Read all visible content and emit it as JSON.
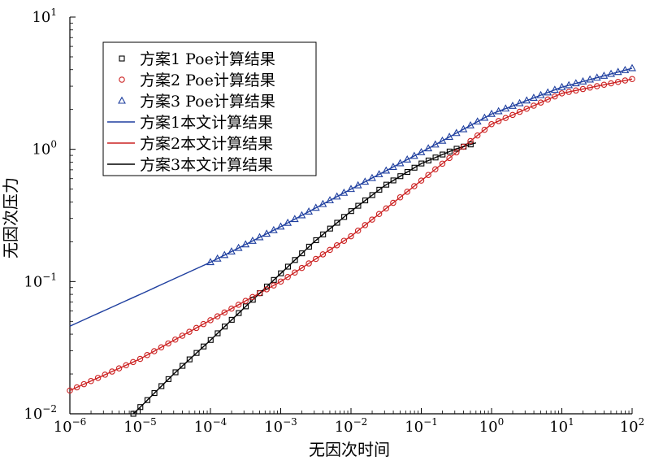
{
  "chart_data": {
    "type": "line",
    "xlabel": "无因次时间",
    "ylabel": "无因次压力",
    "xscale": "log",
    "yscale": "log",
    "xlim": [
      1e-06,
      100
    ],
    "ylim": [
      0.01,
      10
    ],
    "x_ticks": [
      {
        "value": 1e-06,
        "base": "10",
        "exp": "−6"
      },
      {
        "value": 1e-05,
        "base": "10",
        "exp": "−5"
      },
      {
        "value": 0.0001,
        "base": "10",
        "exp": "−4"
      },
      {
        "value": 0.001,
        "base": "10",
        "exp": "−3"
      },
      {
        "value": 0.01,
        "base": "10",
        "exp": "−2"
      },
      {
        "value": 0.1,
        "base": "10",
        "exp": "−1"
      },
      {
        "value": 1,
        "base": "10",
        "exp": "0"
      },
      {
        "value": 10,
        "base": "10",
        "exp": "1"
      },
      {
        "value": 100,
        "base": "10",
        "exp": "2"
      }
    ],
    "y_ticks": [
      {
        "value": 0.01,
        "base": "10",
        "exp": "−2"
      },
      {
        "value": 0.1,
        "base": "10",
        "exp": "−1"
      },
      {
        "value": 1,
        "base": "10",
        "exp": "0"
      },
      {
        "value": 10,
        "base": "10",
        "exp": "1"
      }
    ],
    "grid": false,
    "legend_position": "top-left",
    "series": [
      {
        "name": "方案1 Poe计算结果",
        "kind": "marker",
        "marker": "square",
        "color": "#000000",
        "x": [
          8e-06,
          1e-05,
          3e-05,
          0.0001,
          0.0003,
          0.001,
          0.003,
          0.01,
          0.03,
          0.1,
          0.3,
          0.6
        ],
        "y": [
          0.01,
          0.0112,
          0.02,
          0.036,
          0.063,
          0.115,
          0.2,
          0.34,
          0.53,
          0.78,
          1.0,
          1.12
        ]
      },
      {
        "name": "方案2 Poe计算结果",
        "kind": "marker",
        "marker": "circle",
        "color": "#cc2222",
        "x": [
          1e-06,
          1e-05,
          0.0001,
          0.001,
          0.01,
          0.1,
          1,
          10,
          100
        ],
        "y": [
          0.015,
          0.026,
          0.051,
          0.1,
          0.22,
          0.58,
          1.55,
          2.65,
          3.4
        ]
      },
      {
        "name": "方案3 Poe计算结果",
        "kind": "marker",
        "marker": "triangle",
        "color": "#1f3f9f",
        "x": [
          0.0001,
          0.001,
          0.01,
          0.1,
          1,
          10,
          100
        ],
        "y": [
          0.14,
          0.26,
          0.5,
          0.95,
          1.85,
          2.95,
          4.1
        ]
      },
      {
        "name": "方案1本文计算结果",
        "kind": "line",
        "color": "#1f3f9f",
        "x": [
          1e-06,
          1e-05,
          0.0001,
          0.001,
          0.01,
          0.1,
          1,
          10,
          100
        ],
        "y": [
          0.046,
          0.08,
          0.14,
          0.26,
          0.5,
          0.95,
          1.85,
          2.95,
          4.1
        ]
      },
      {
        "name": "方案2本文计算结果",
        "kind": "line",
        "color": "#cc2222",
        "x": [
          1e-06,
          1e-05,
          0.0001,
          0.001,
          0.01,
          0.1,
          1,
          10,
          100
        ],
        "y": [
          0.015,
          0.026,
          0.051,
          0.1,
          0.22,
          0.58,
          1.55,
          2.65,
          3.4
        ]
      },
      {
        "name": "方案3本文计算结果",
        "kind": "line",
        "color": "#000000",
        "x": [
          8e-06,
          1e-05,
          3e-05,
          0.0001,
          0.0003,
          0.001,
          0.003,
          0.01,
          0.03,
          0.1,
          0.3,
          0.6
        ],
        "y": [
          0.01,
          0.0112,
          0.02,
          0.036,
          0.063,
          0.115,
          0.2,
          0.34,
          0.53,
          0.78,
          1.0,
          1.12
        ]
      }
    ]
  }
}
